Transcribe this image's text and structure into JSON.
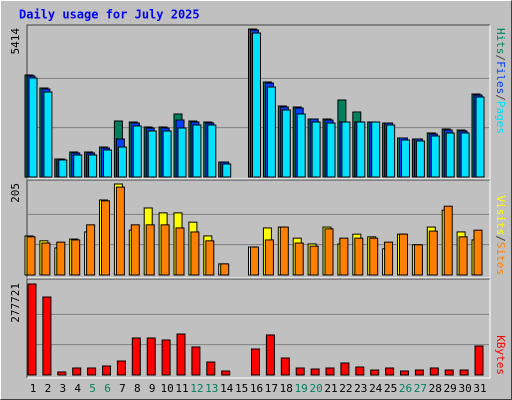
{
  "chart_data": [
    {
      "type": "bar",
      "title": "Daily usage for July 2025",
      "ylim": [
        0,
        5414
      ],
      "yticks": [
        5414
      ],
      "grid": true,
      "legend_separator": "/",
      "series": [
        {
          "name": "Hits",
          "color": "#00805c",
          "values": [
            3731,
            3256,
            658,
            915,
            915,
            1097,
            2048,
            2012,
            1829,
            1829,
            2305,
            2048,
            2012,
            549,
            0,
            5414,
            3475,
            2597,
            2561,
            2122,
            2122,
            2817,
            2378,
            2012,
            1975,
            1427,
            1390,
            1610,
            1756,
            1719,
            3036
          ]
        },
        {
          "name": "Files",
          "color": "#0040ff",
          "values": [
            3695,
            3219,
            658,
            878,
            878,
            1061,
            1390,
            1975,
            1792,
            1792,
            2085,
            2012,
            1975,
            549,
            0,
            5377,
            3439,
            2561,
            2524,
            2122,
            2085,
            2012,
            2012,
            2012,
            1975,
            1427,
            1390,
            1573,
            1719,
            1683,
            3000
          ]
        },
        {
          "name": "Pages",
          "color": "#00e0ff",
          "values": [
            3621,
            3109,
            622,
            805,
            805,
            988,
            1097,
            1866,
            1683,
            1683,
            1792,
            1902,
            1902,
            476,
            0,
            5267,
            3292,
            2451,
            2305,
            2012,
            1975,
            2012,
            2012,
            2012,
            1902,
            1353,
            1317,
            1500,
            1610,
            1610,
            2927
          ]
        }
      ]
    },
    {
      "type": "bar",
      "ylim": [
        0,
        205
      ],
      "yticks": [
        205
      ],
      "grid": true,
      "legend_separator": "/",
      "series": [
        {
          "name": "Visits",
          "color": "#ffff00",
          "values": [
            88,
            77,
            61,
            81,
            97,
            169,
            205,
            101,
            151,
            140,
            140,
            119,
            88,
            25,
            0,
            63,
            106,
            108,
            83,
            70,
            108,
            70,
            92,
            86,
            59,
            92,
            68,
            108,
            146,
            97,
            79
          ]
        },
        {
          "name": "Sites",
          "color": "#ff8000",
          "values": [
            86,
            72,
            74,
            79,
            113,
            167,
            198,
            113,
            113,
            113,
            106,
            97,
            77,
            25,
            0,
            63,
            79,
            108,
            72,
            65,
            104,
            83,
            83,
            83,
            74,
            92,
            68,
            99,
            155,
            86,
            101
          ]
        }
      ]
    },
    {
      "type": "bar",
      "ylim": [
        0,
        277721
      ],
      "yticks": [
        277721
      ],
      "grid": true,
      "categories": [
        "1",
        "2",
        "3",
        "4",
        "5",
        "6",
        "7",
        "8",
        "9",
        "10",
        "11",
        "12",
        "13",
        "14",
        "15",
        "16",
        "17",
        "18",
        "19",
        "20",
        "21",
        "22",
        "23",
        "24",
        "25",
        "26",
        "27",
        "28",
        "29",
        "30",
        "31"
      ],
      "weekend_color": "#00805c",
      "weekends": [
        4,
        5,
        11,
        12,
        18,
        19,
        25,
        26
      ],
      "series": [
        {
          "name": "KBytes",
          "color": "#ff0000",
          "values": [
            277721,
            238000,
            9156,
            21364,
            21364,
            27468,
            42728,
            112924,
            112924,
            106820,
            125132,
            85456,
            39676,
            12208,
            0,
            79352,
            122080,
            51884,
            21364,
            18312,
            21364,
            36624,
            24416,
            15260,
            21364,
            12208,
            15260,
            21364,
            15260,
            15260,
            88508
          ]
        }
      ]
    }
  ]
}
